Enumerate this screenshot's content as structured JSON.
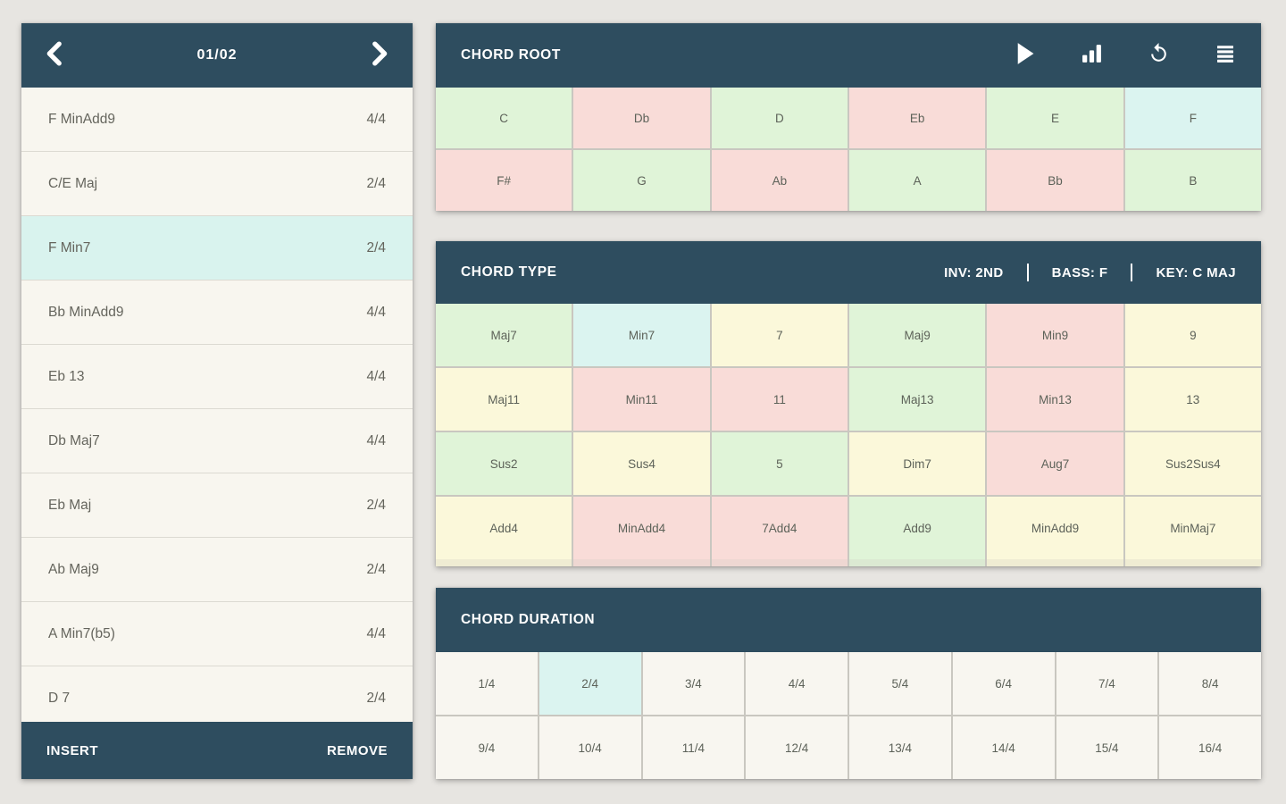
{
  "colors": {
    "header_bg": "#2e4d5f",
    "page_bg": "#e7e5e1",
    "cell_green": "#e0f4d8",
    "cell_pink": "#f9dcd8",
    "cell_cyan": "#dbf4f0",
    "cell_yellow": "#fbf8da",
    "cell_plain": "#f8f6f0",
    "selected_row_bg": "#d9f3ee"
  },
  "icons": [
    "chevron-left",
    "chevron-right",
    "play",
    "bar-chart",
    "undo",
    "menu"
  ],
  "progression": {
    "page_label": "01/02",
    "insert_label": "INSERT",
    "remove_label": "REMOVE",
    "items": [
      {
        "name": "F MinAdd9",
        "duration": "4/4",
        "selected": false
      },
      {
        "name": "C/E Maj",
        "duration": "2/4",
        "selected": false
      },
      {
        "name": "F Min7",
        "duration": "2/4",
        "selected": true
      },
      {
        "name": "Bb MinAdd9",
        "duration": "4/4",
        "selected": false
      },
      {
        "name": "Eb 13",
        "duration": "4/4",
        "selected": false
      },
      {
        "name": "Db Maj7",
        "duration": "4/4",
        "selected": false
      },
      {
        "name": "Eb Maj",
        "duration": "2/4",
        "selected": false
      },
      {
        "name": "Ab Maj9",
        "duration": "2/4",
        "selected": false
      },
      {
        "name": "A Min7(b5)",
        "duration": "4/4",
        "selected": false
      },
      {
        "name": "D 7",
        "duration": "2/4",
        "selected": false
      }
    ]
  },
  "chord_root": {
    "title": "CHORD ROOT",
    "cells": [
      {
        "label": "C",
        "color": "green",
        "selected": false
      },
      {
        "label": "Db",
        "color": "pink",
        "selected": false
      },
      {
        "label": "D",
        "color": "green",
        "selected": false
      },
      {
        "label": "Eb",
        "color": "pink",
        "selected": false
      },
      {
        "label": "E",
        "color": "green",
        "selected": false
      },
      {
        "label": "F",
        "color": "cyan",
        "selected": true
      },
      {
        "label": "F#",
        "color": "pink",
        "selected": false
      },
      {
        "label": "G",
        "color": "green",
        "selected": false
      },
      {
        "label": "Ab",
        "color": "pink",
        "selected": false
      },
      {
        "label": "A",
        "color": "green",
        "selected": false
      },
      {
        "label": "Bb",
        "color": "pink",
        "selected": false
      },
      {
        "label": "B",
        "color": "green",
        "selected": false
      }
    ]
  },
  "chord_type": {
    "title": "CHORD TYPE",
    "status": {
      "inv": "INV: 2ND",
      "bass": "BASS: F",
      "key": "KEY: C MAJ"
    },
    "cells": [
      {
        "label": "Maj7",
        "color": "green",
        "selected": false
      },
      {
        "label": "Min7",
        "color": "cyan",
        "selected": true
      },
      {
        "label": "7",
        "color": "yellow",
        "selected": false
      },
      {
        "label": "Maj9",
        "color": "green",
        "selected": false
      },
      {
        "label": "Min9",
        "color": "pink",
        "selected": false
      },
      {
        "label": "9",
        "color": "yellow",
        "selected": false
      },
      {
        "label": "Maj11",
        "color": "yellow",
        "selected": false
      },
      {
        "label": "Min11",
        "color": "pink",
        "selected": false
      },
      {
        "label": "11",
        "color": "pink",
        "selected": false
      },
      {
        "label": "Maj13",
        "color": "green",
        "selected": false
      },
      {
        "label": "Min13",
        "color": "pink",
        "selected": false
      },
      {
        "label": "13",
        "color": "yellow",
        "selected": false
      },
      {
        "label": "Sus2",
        "color": "green",
        "selected": false
      },
      {
        "label": "Sus4",
        "color": "yellow",
        "selected": false
      },
      {
        "label": "5",
        "color": "green",
        "selected": false
      },
      {
        "label": "Dim7",
        "color": "yellow",
        "selected": false
      },
      {
        "label": "Aug7",
        "color": "pink",
        "selected": false
      },
      {
        "label": "Sus2Sus4",
        "color": "yellow",
        "selected": false
      },
      {
        "label": "Add4",
        "color": "yellow",
        "selected": false
      },
      {
        "label": "MinAdd4",
        "color": "pink",
        "selected": false
      },
      {
        "label": "7Add4",
        "color": "pink",
        "selected": false
      },
      {
        "label": "Add9",
        "color": "green",
        "selected": false
      },
      {
        "label": "MinAdd9",
        "color": "yellow",
        "selected": false
      },
      {
        "label": "MinMaj7",
        "color": "yellow",
        "selected": false
      }
    ],
    "partial_row_colors": [
      "yellow",
      "pink",
      "pink",
      "green",
      "yellow",
      "yellow"
    ]
  },
  "chord_duration": {
    "title": "CHORD DURATION",
    "cells": [
      {
        "label": "1/4",
        "selected": false
      },
      {
        "label": "2/4",
        "selected": true
      },
      {
        "label": "3/4",
        "selected": false
      },
      {
        "label": "4/4",
        "selected": false
      },
      {
        "label": "5/4",
        "selected": false
      },
      {
        "label": "6/4",
        "selected": false
      },
      {
        "label": "7/4",
        "selected": false
      },
      {
        "label": "8/4",
        "selected": false
      },
      {
        "label": "9/4",
        "selected": false
      },
      {
        "label": "10/4",
        "selected": false
      },
      {
        "label": "11/4",
        "selected": false
      },
      {
        "label": "12/4",
        "selected": false
      },
      {
        "label": "13/4",
        "selected": false
      },
      {
        "label": "14/4",
        "selected": false
      },
      {
        "label": "15/4",
        "selected": false
      },
      {
        "label": "16/4",
        "selected": false
      }
    ]
  }
}
